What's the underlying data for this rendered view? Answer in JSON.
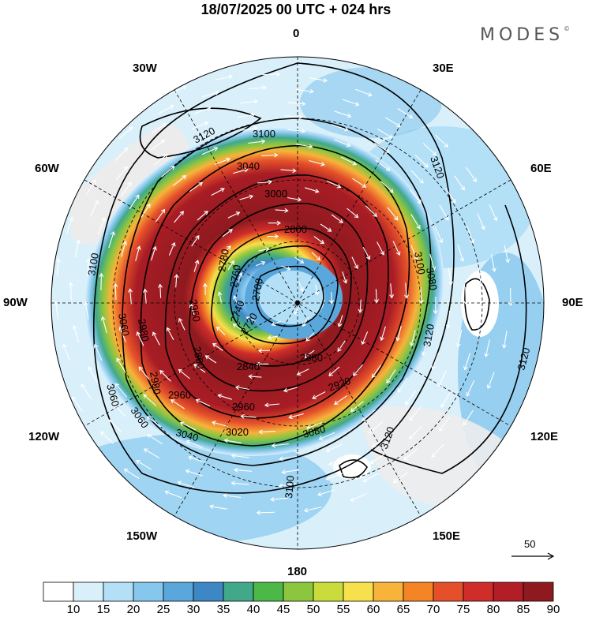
{
  "title": "18/07/2025  00 UTC  + 024 hrs",
  "brand": "MODES",
  "brand_mark": "©",
  "longitude_labels": [
    "0",
    "30E",
    "60E",
    "90E",
    "120E",
    "150E",
    "180",
    "150W",
    "120W",
    "90W",
    "60W",
    "30W"
  ],
  "contour_labels": [
    "3120",
    "3100",
    "3080",
    "3060",
    "3040",
    "3020",
    "3000",
    "2980",
    "2960",
    "2940",
    "2920",
    "2900",
    "2880",
    "2860",
    "2840",
    "2820",
    "2800",
    "2780",
    "2760",
    "2740",
    "2720",
    "2700"
  ],
  "colorbar": {
    "ticks": [
      "10",
      "15",
      "20",
      "25",
      "30",
      "35",
      "40",
      "45",
      "50",
      "55",
      "60",
      "65",
      "70",
      "75",
      "80",
      "85",
      "90"
    ],
    "colors": [
      "#ffffff",
      "#d9f0fb",
      "#b3e0f7",
      "#86c7ee",
      "#5aa7dc",
      "#3d87c4",
      "#41a889",
      "#4cb848",
      "#8bc63e",
      "#c9dc3c",
      "#f6e04b",
      "#f8b33a",
      "#f48426",
      "#e5502a",
      "#cf2d2a",
      "#b31d27",
      "#8e1a1f"
    ]
  },
  "reference_vector": {
    "label": "50"
  },
  "colors": {
    "land": "#ececec",
    "contour": "#000000",
    "wind_vector": "#ffffff"
  }
}
